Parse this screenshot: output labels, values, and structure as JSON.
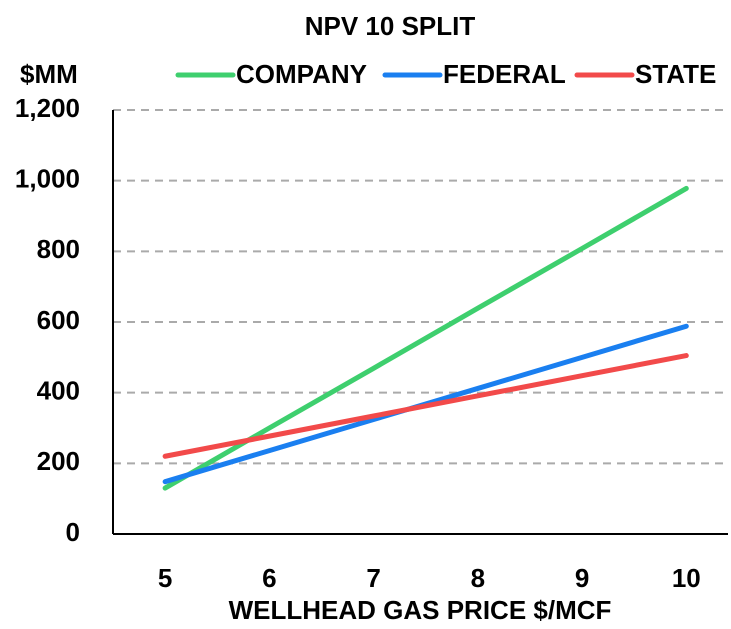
{
  "chart_data": {
    "type": "line",
    "title": "NPV 10 SPLIT",
    "y_label": "$MM",
    "x_label": "WELLHEAD GAS PRICE $/MCF",
    "x": [
      5,
      6,
      7,
      8,
      9,
      10
    ],
    "series": [
      {
        "name": "COMPANY",
        "color": "#3ecf6e",
        "values": [
          130,
          300,
          469,
          639,
          808,
          978
        ]
      },
      {
        "name": "FEDERAL",
        "color": "#1a7ff0",
        "values": [
          148,
          236,
          324,
          412,
          500,
          588
        ]
      },
      {
        "name": "STATE",
        "color": "#f24a4a",
        "values": [
          220,
          277,
          334,
          391,
          448,
          505
        ]
      }
    ],
    "xlim": [
      4.5,
      10.4
    ],
    "xticks": [
      5,
      6,
      7,
      8,
      9,
      10
    ],
    "ylim": [
      0,
      1200
    ],
    "yticks": [
      0,
      200,
      400,
      600,
      800,
      {
        "value": 1000,
        "label": "1,000"
      },
      {
        "value": 1200,
        "label": "1,200"
      }
    ],
    "grid": true,
    "legend": "top"
  }
}
